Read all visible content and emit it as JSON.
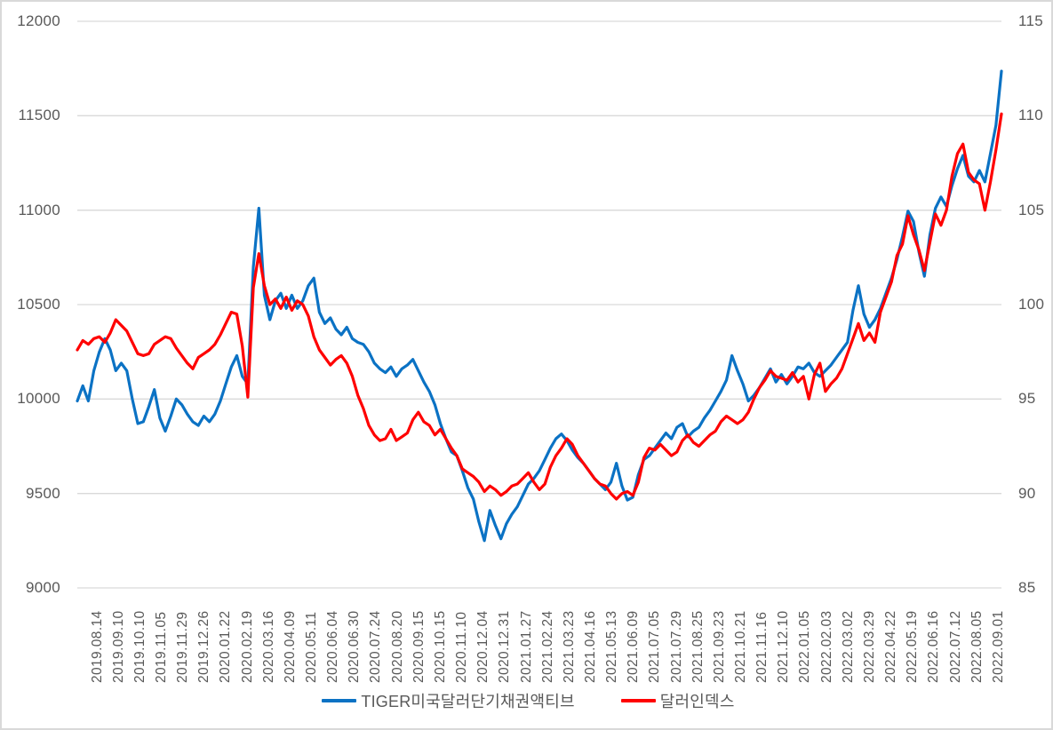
{
  "chart": {
    "title": "",
    "legend": [
      {
        "label": "TIGER미국달러단기채권액티브",
        "color": "#0b72c4"
      },
      {
        "label": "달러인덱스",
        "color": "#ff0000"
      }
    ]
  },
  "colors": {
    "grid": "#d9d9d9",
    "axis_text": "#595959",
    "background": "#ffffff",
    "border": "#d9d9d9",
    "series_blue": "#0b72c4",
    "series_red": "#ff0000"
  },
  "chart_data": {
    "type": "line",
    "title": "",
    "grid": "horizontal",
    "legend_position": "bottom",
    "x_labels": [
      "2019.08.14",
      "2019.09.10",
      "2019.10.10",
      "2019.11.05",
      "2019.11.29",
      "2019.12.26",
      "2020.01.22",
      "2020.02.19",
      "2020.03.16",
      "2020.04.09",
      "2020.05.11",
      "2020.06.04",
      "2020.06.30",
      "2020.07.24",
      "2020.08.20",
      "2020.09.15",
      "2020.10.15",
      "2020.11.10",
      "2020.12.04",
      "2020.12.31",
      "2021.01.27",
      "2021.02.24",
      "2021.03.23",
      "2021.04.16",
      "2021.05.13",
      "2021.06.09",
      "2021.07.05",
      "2021.07.29",
      "2021.08.25",
      "2021.09.23",
      "2021.10.21",
      "2021.11.16",
      "2021.12.10",
      "2022.01.05",
      "2022.02.03",
      "2022.03.02",
      "2022.03.29",
      "2022.04.22",
      "2022.05.19",
      "2022.06.16",
      "2022.07.12",
      "2022.08.05",
      "2022.09.01"
    ],
    "points_per_label_interval": 4,
    "left_axis": {
      "min": 9000,
      "max": 12000,
      "ticks": [
        12000,
        11500,
        11000,
        10500,
        10000,
        9500,
        9000
      ],
      "series": "TIGER미국달러단기채권액티브"
    },
    "right_axis": {
      "min": 85,
      "max": 115,
      "ticks": [
        115,
        110,
        105,
        100,
        95,
        90,
        85
      ],
      "series": "달러인덱스"
    },
    "series": [
      {
        "name": "TIGER미국달러단기채권액티브",
        "axis": "left",
        "color": "#0b72c4",
        "values": [
          9990,
          10070,
          9990,
          10150,
          10250,
          10320,
          10260,
          10150,
          10190,
          10150,
          10000,
          9870,
          9880,
          9960,
          10050,
          9900,
          9830,
          9910,
          10000,
          9970,
          9920,
          9880,
          9860,
          9910,
          9880,
          9920,
          9990,
          10080,
          10170,
          10230,
          10120,
          10080,
          10700,
          11010,
          10550,
          10420,
          10520,
          10560,
          10480,
          10550,
          10480,
          10520,
          10600,
          10640,
          10460,
          10400,
          10430,
          10370,
          10340,
          10380,
          10320,
          10300,
          10290,
          10250,
          10190,
          10160,
          10140,
          10170,
          10120,
          10160,
          10180,
          10210,
          10150,
          10090,
          10040,
          9970,
          9870,
          9790,
          9720,
          9700,
          9620,
          9530,
          9470,
          9350,
          9250,
          9410,
          9330,
          9260,
          9340,
          9390,
          9430,
          9490,
          9550,
          9580,
          9620,
          9680,
          9740,
          9790,
          9815,
          9780,
          9730,
          9690,
          9660,
          9620,
          9580,
          9550,
          9520,
          9560,
          9660,
          9540,
          9465,
          9480,
          9600,
          9680,
          9700,
          9740,
          9780,
          9820,
          9790,
          9850,
          9870,
          9800,
          9830,
          9850,
          9900,
          9940,
          9990,
          10040,
          10100,
          10230,
          10150,
          10080,
          9990,
          10020,
          10060,
          10110,
          10160,
          10090,
          10130,
          10080,
          10120,
          10170,
          10160,
          10190,
          10140,
          10120,
          10150,
          10180,
          10220,
          10260,
          10300,
          10470,
          10600,
          10450,
          10380,
          10420,
          10480,
          10560,
          10640,
          10740,
          10860,
          10995,
          10940,
          10780,
          10650,
          10870,
          11010,
          11070,
          11020,
          11130,
          11220,
          11290,
          11180,
          11150,
          11210,
          11150,
          11300,
          11450,
          11736
        ]
      },
      {
        "name": "달러인덱스",
        "axis": "right",
        "color": "#ff0000",
        "values": [
          97.6,
          98.1,
          97.9,
          98.2,
          98.3,
          98.0,
          98.5,
          99.2,
          98.9,
          98.6,
          98.0,
          97.4,
          97.3,
          97.4,
          97.9,
          98.1,
          98.3,
          98.2,
          97.7,
          97.3,
          96.9,
          96.6,
          97.2,
          97.4,
          97.6,
          97.9,
          98.4,
          99.0,
          99.6,
          99.5,
          97.8,
          95.1,
          100.9,
          102.7,
          101.0,
          100.0,
          100.3,
          99.8,
          100.4,
          99.7,
          100.2,
          100.0,
          99.4,
          98.3,
          97.6,
          97.2,
          96.8,
          97.1,
          97.3,
          96.9,
          96.2,
          95.2,
          94.5,
          93.6,
          93.1,
          92.8,
          92.9,
          93.4,
          92.8,
          93.0,
          93.2,
          93.9,
          94.3,
          93.8,
          93.6,
          93.1,
          93.4,
          92.9,
          92.4,
          92.0,
          91.3,
          91.1,
          90.9,
          90.6,
          90.1,
          90.4,
          90.2,
          89.9,
          90.1,
          90.4,
          90.5,
          90.8,
          91.1,
          90.6,
          90.2,
          90.5,
          91.4,
          92.0,
          92.4,
          92.9,
          92.6,
          92.0,
          91.6,
          91.2,
          90.8,
          90.5,
          90.4,
          90.0,
          89.7,
          90.0,
          90.1,
          89.9,
          90.6,
          91.9,
          92.4,
          92.3,
          92.6,
          92.3,
          92.0,
          92.2,
          92.8,
          93.1,
          92.7,
          92.5,
          92.8,
          93.1,
          93.3,
          93.8,
          94.1,
          93.9,
          93.7,
          93.9,
          94.3,
          95.0,
          95.6,
          96.0,
          96.5,
          96.2,
          96.1,
          96.0,
          96.4,
          95.9,
          96.2,
          95.0,
          96.3,
          96.9,
          95.4,
          95.8,
          96.1,
          96.6,
          97.4,
          98.2,
          99.0,
          98.1,
          98.5,
          98.0,
          99.6,
          100.4,
          101.2,
          102.6,
          103.2,
          104.7,
          103.7,
          102.9,
          101.8,
          103.3,
          104.8,
          104.2,
          105.0,
          106.8,
          108.0,
          108.5,
          107.0,
          106.6,
          106.4,
          105.0,
          106.5,
          108.2,
          110.1
        ]
      }
    ]
  }
}
